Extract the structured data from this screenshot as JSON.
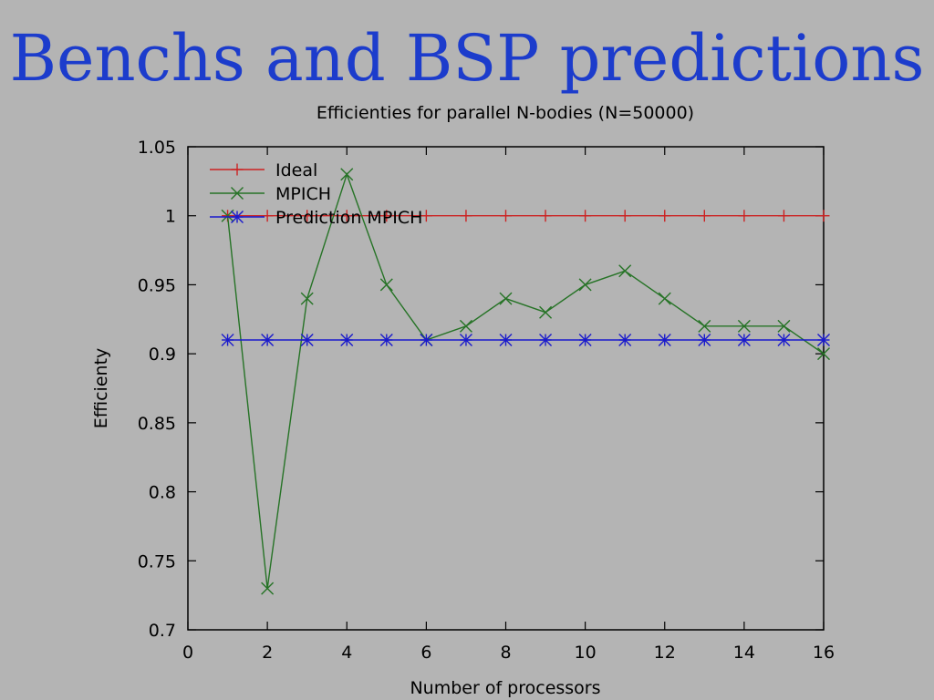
{
  "slide": {
    "title": "Benchs and BSP predictions"
  },
  "chart_data": {
    "type": "line",
    "title": "Efficienties for parallel N-bodies (N=50000)",
    "xlabel": "Number of processors",
    "ylabel": "Efficienty",
    "xlim": [
      0,
      16
    ],
    "ylim": [
      0.7,
      1.05
    ],
    "xticks": [
      0,
      2,
      4,
      6,
      8,
      10,
      12,
      14,
      16
    ],
    "yticks": [
      0.7,
      0.75,
      0.8,
      0.85,
      0.9,
      0.95,
      1,
      1.05
    ],
    "xtick_labels": [
      "0",
      "2",
      "4",
      "6",
      "8",
      "10",
      "12",
      "14",
      "16"
    ],
    "ytick_labels": [
      "0.7",
      "0.75",
      "0.8",
      "0.85",
      "0.9",
      "0.95",
      "1",
      "1.05"
    ],
    "legend_position": "top-left",
    "x": [
      1,
      2,
      3,
      4,
      5,
      6,
      7,
      8,
      9,
      10,
      11,
      12,
      13,
      14,
      15,
      16
    ],
    "series": [
      {
        "name": "Ideal",
        "color": "#cc2222",
        "marker": "plus",
        "values": [
          1,
          1,
          1,
          1,
          1,
          1,
          1,
          1,
          1,
          1,
          1,
          1,
          1,
          1,
          1,
          1
        ]
      },
      {
        "name": "MPICH",
        "color": "#267326",
        "marker": "cross",
        "values": [
          1,
          0.73,
          0.94,
          1.03,
          0.95,
          0.91,
          0.92,
          0.94,
          0.93,
          0.95,
          0.96,
          0.94,
          0.92,
          0.92,
          0.92,
          0.9
        ]
      },
      {
        "name": "Prediction MPICH",
        "color": "#1a1acc",
        "marker": "star",
        "values": [
          0.91,
          0.91,
          0.91,
          0.91,
          0.91,
          0.91,
          0.91,
          0.91,
          0.91,
          0.91,
          0.91,
          0.91,
          0.91,
          0.91,
          0.91,
          0.91
        ]
      }
    ]
  }
}
